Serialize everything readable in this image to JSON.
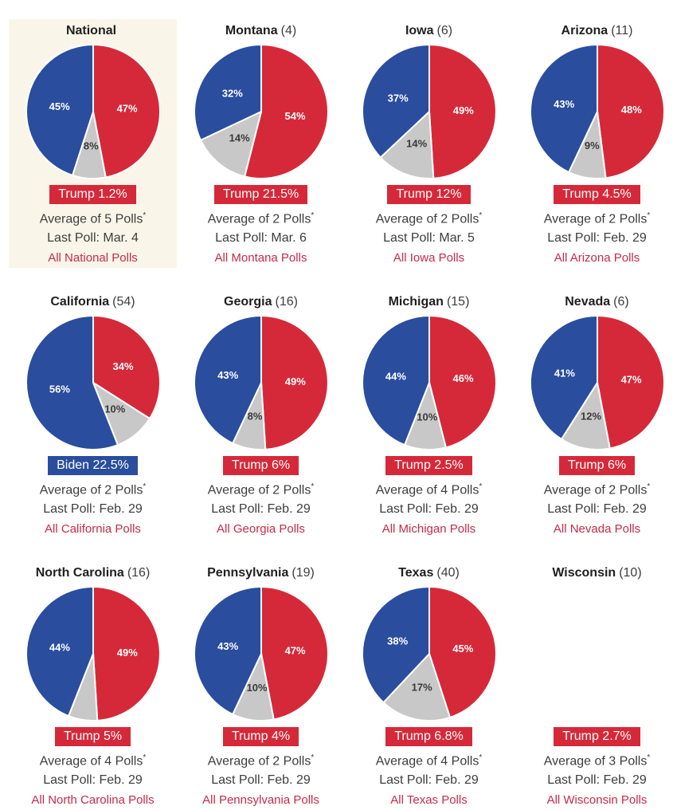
{
  "page": {
    "background": "#ffffff",
    "highlight_background": "#faf5e9"
  },
  "colors": {
    "red": "#d5293a",
    "blue": "#2a4d9e",
    "gray": "#c8c8c9",
    "link_red": "#c62b49",
    "text_dark": "#3d3d3d",
    "title_dark": "#1f1f1f",
    "slice_label_light": "#ffffff",
    "slice_label_dark": "#3a3a3a"
  },
  "chart_data": [
    {
      "type": "pie",
      "title": "National",
      "count": "",
      "highlighted": true,
      "has_pie": true,
      "slices": [
        {
          "party": "Trump",
          "color_key": "red",
          "value": 47,
          "label": "47%"
        },
        {
          "party": "Other",
          "color_key": "gray",
          "value": 8,
          "label": "8%"
        },
        {
          "party": "Biden",
          "color_key": "blue",
          "value": 45,
          "label": "45%"
        }
      ],
      "badge": {
        "text": "Trump 1.2%",
        "color_key": "red"
      },
      "average": "Average of 5 Polls",
      "average_sup": "*",
      "last_poll": "Last Poll: Mar. 4",
      "link": "All National Polls"
    },
    {
      "type": "pie",
      "title": "Montana",
      "count": "(4)",
      "highlighted": false,
      "has_pie": true,
      "slices": [
        {
          "party": "Trump",
          "color_key": "red",
          "value": 54,
          "label": "54%"
        },
        {
          "party": "Other",
          "color_key": "gray",
          "value": 14,
          "label": "14%"
        },
        {
          "party": "Biden",
          "color_key": "blue",
          "value": 32,
          "label": "32%"
        }
      ],
      "badge": {
        "text": "Trump 21.5%",
        "color_key": "red"
      },
      "average": "Average of 2 Polls",
      "average_sup": "*",
      "last_poll": "Last Poll: Mar. 6",
      "link": "All Montana Polls"
    },
    {
      "type": "pie",
      "title": "Iowa",
      "count": "(6)",
      "highlighted": false,
      "has_pie": true,
      "slices": [
        {
          "party": "Trump",
          "color_key": "red",
          "value": 49,
          "label": "49%"
        },
        {
          "party": "Other",
          "color_key": "gray",
          "value": 14,
          "label": "14%"
        },
        {
          "party": "Biden",
          "color_key": "blue",
          "value": 37,
          "label": "37%"
        }
      ],
      "badge": {
        "text": "Trump 12%",
        "color_key": "red"
      },
      "average": "Average of 2 Polls",
      "average_sup": "*",
      "last_poll": "Last Poll: Mar. 5",
      "link": "All Iowa Polls"
    },
    {
      "type": "pie",
      "title": "Arizona",
      "count": "(11)",
      "highlighted": false,
      "has_pie": true,
      "slices": [
        {
          "party": "Trump",
          "color_key": "red",
          "value": 48,
          "label": "48%"
        },
        {
          "party": "Other",
          "color_key": "gray",
          "value": 9,
          "label": "9%"
        },
        {
          "party": "Biden",
          "color_key": "blue",
          "value": 43,
          "label": "43%"
        }
      ],
      "badge": {
        "text": "Trump 4.5%",
        "color_key": "red"
      },
      "average": "Average of 2 Polls",
      "average_sup": "*",
      "last_poll": "Last Poll: Feb. 29",
      "link": "All Arizona Polls"
    },
    {
      "type": "pie",
      "title": "California",
      "count": "(54)",
      "highlighted": false,
      "has_pie": true,
      "slices": [
        {
          "party": "Trump",
          "color_key": "red",
          "value": 34,
          "label": "34%"
        },
        {
          "party": "Other",
          "color_key": "gray",
          "value": 10,
          "label": "10%"
        },
        {
          "party": "Biden",
          "color_key": "blue",
          "value": 56,
          "label": "56%"
        }
      ],
      "badge": {
        "text": "Biden 22.5%",
        "color_key": "blue"
      },
      "average": "Average of 2 Polls",
      "average_sup": "*",
      "last_poll": "Last Poll: Feb. 29",
      "link": "All California Polls"
    },
    {
      "type": "pie",
      "title": "Georgia",
      "count": "(16)",
      "highlighted": false,
      "has_pie": true,
      "slices": [
        {
          "party": "Trump",
          "color_key": "red",
          "value": 49,
          "label": "49%"
        },
        {
          "party": "Other",
          "color_key": "gray",
          "value": 8,
          "label": "8%"
        },
        {
          "party": "Biden",
          "color_key": "blue",
          "value": 43,
          "label": "43%"
        }
      ],
      "badge": {
        "text": "Trump 6%",
        "color_key": "red"
      },
      "average": "Average of 2 Polls",
      "average_sup": "*",
      "last_poll": "Last Poll: Feb. 29",
      "link": "All Georgia Polls"
    },
    {
      "type": "pie",
      "title": "Michigan",
      "count": "(15)",
      "highlighted": false,
      "has_pie": true,
      "slices": [
        {
          "party": "Trump",
          "color_key": "red",
          "value": 46,
          "label": "46%"
        },
        {
          "party": "Other",
          "color_key": "gray",
          "value": 10,
          "label": "10%"
        },
        {
          "party": "Biden",
          "color_key": "blue",
          "value": 44,
          "label": "44%"
        }
      ],
      "badge": {
        "text": "Trump 2.5%",
        "color_key": "red"
      },
      "average": "Average of 4 Polls",
      "average_sup": "*",
      "last_poll": "Last Poll: Feb. 29",
      "link": "All Michigan Polls"
    },
    {
      "type": "pie",
      "title": "Nevada",
      "count": "(6)",
      "highlighted": false,
      "has_pie": true,
      "slices": [
        {
          "party": "Trump",
          "color_key": "red",
          "value": 47,
          "label": "47%"
        },
        {
          "party": "Other",
          "color_key": "gray",
          "value": 12,
          "label": "12%"
        },
        {
          "party": "Biden",
          "color_key": "blue",
          "value": 41,
          "label": "41%"
        }
      ],
      "badge": {
        "text": "Trump 6%",
        "color_key": "red"
      },
      "average": "Average of 2 Polls",
      "average_sup": "*",
      "last_poll": "Last Poll: Feb. 29",
      "link": "All Nevada Polls"
    },
    {
      "type": "pie",
      "title": "North Carolina",
      "count": "(16)",
      "highlighted": false,
      "has_pie": true,
      "slices": [
        {
          "party": "Trump",
          "color_key": "red",
          "value": 49,
          "label": "49%"
        },
        {
          "party": "Other",
          "color_key": "gray",
          "value": 7,
          "label": ""
        },
        {
          "party": "Biden",
          "color_key": "blue",
          "value": 44,
          "label": "44%"
        }
      ],
      "badge": {
        "text": "Trump 5%",
        "color_key": "red"
      },
      "average": "Average of 4 Polls",
      "average_sup": "*",
      "last_poll": "Last Poll: Feb. 29",
      "link": "All North Carolina Polls"
    },
    {
      "type": "pie",
      "title": "Pennsylvania",
      "count": "(19)",
      "highlighted": false,
      "has_pie": true,
      "slices": [
        {
          "party": "Trump",
          "color_key": "red",
          "value": 47,
          "label": "47%"
        },
        {
          "party": "Other",
          "color_key": "gray",
          "value": 10,
          "label": "10%"
        },
        {
          "party": "Biden",
          "color_key": "blue",
          "value": 43,
          "label": "43%"
        }
      ],
      "badge": {
        "text": "Trump 4%",
        "color_key": "red"
      },
      "average": "Average of 2 Polls",
      "average_sup": "*",
      "last_poll": "Last Poll: Feb. 29",
      "link": "All Pennsylvania Polls"
    },
    {
      "type": "pie",
      "title": "Texas",
      "count": "(40)",
      "highlighted": false,
      "has_pie": true,
      "slices": [
        {
          "party": "Trump",
          "color_key": "red",
          "value": 45,
          "label": "45%"
        },
        {
          "party": "Other",
          "color_key": "gray",
          "value": 17,
          "label": "17%"
        },
        {
          "party": "Biden",
          "color_key": "blue",
          "value": 38,
          "label": "38%"
        }
      ],
      "badge": {
        "text": "Trump 6.8%",
        "color_key": "red"
      },
      "average": "Average of 4 Polls",
      "average_sup": "*",
      "last_poll": "Last Poll: Feb. 29",
      "link": "All Texas Polls"
    },
    {
      "type": "pie",
      "title": "Wisconsin",
      "count": "(10)",
      "highlighted": false,
      "has_pie": false,
      "slices": [],
      "badge": {
        "text": "Trump 2.7%",
        "color_key": "red"
      },
      "average": "Average of 3 Polls",
      "average_sup": "*",
      "last_poll": "Last Poll: Feb. 29",
      "link": "All Wisconsin Polls"
    }
  ]
}
